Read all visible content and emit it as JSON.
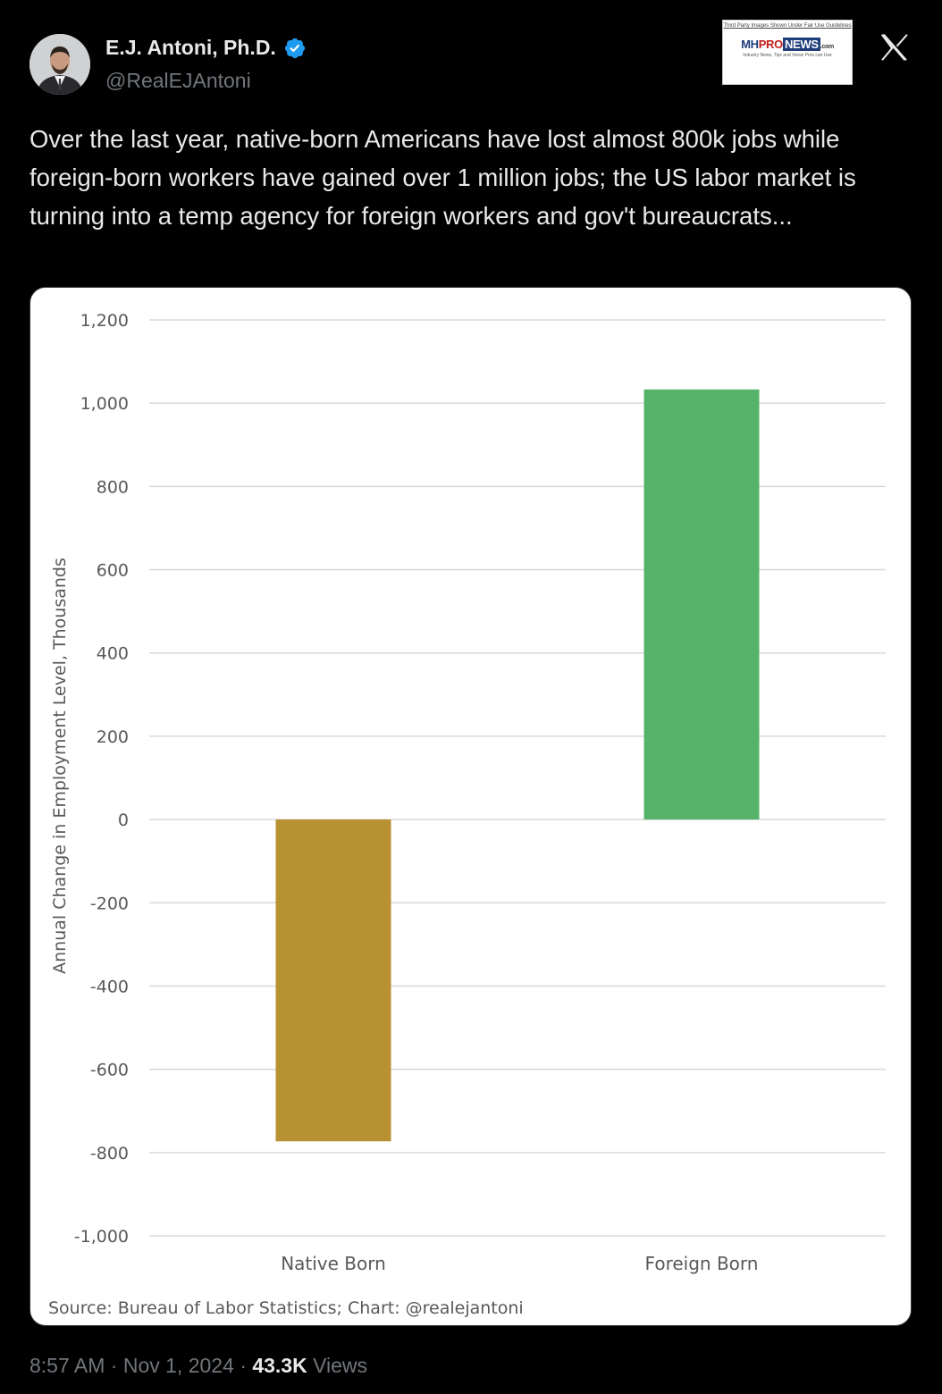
{
  "author": {
    "name": "E.J. Antoni, Ph.D.",
    "handle": "@RealEJAntoni",
    "verified": true
  },
  "logo": {
    "fine_print": "Third Party Images Shown Under Fair Use Guidelines",
    "mh": "MH",
    "pro": "PRO",
    "news": "NEWS",
    "com": ".com",
    "tagline": "Industry News, Tips and Views Pros can Use"
  },
  "platform_icon": "x-logo-icon",
  "tweet": {
    "text": "Over the last year, native-born Americans have lost almost 800k jobs while foreign-born workers have gained over 1 million jobs; the US labor market is turning into a temp agency for foreign workers and gov't bureaucrats..."
  },
  "chart_data": {
    "type": "bar",
    "categories": [
      "Native Born",
      "Foreign Born"
    ],
    "values": [
      -773,
      1033
    ],
    "colors": [
      "#b89232",
      "#55b36a"
    ],
    "ylabel": "Annual Change in Employment Level, Thousands",
    "ylim": [
      -1000,
      1200
    ],
    "yticks": [
      1200,
      1000,
      800,
      600,
      400,
      200,
      0,
      -200,
      -400,
      -600,
      -800,
      -1000
    ],
    "ytick_labels": [
      "1,200",
      "1,000",
      "800",
      "600",
      "400",
      "200",
      "0",
      "-200",
      "-400",
      "-600",
      "-800",
      "-1,000"
    ],
    "grid": true,
    "source": "Source: Bureau of Labor Statistics; Chart: @realejantoni"
  },
  "meta": {
    "time": "8:57 AM",
    "separator": "·",
    "date": "Nov 1, 2024",
    "views_count": "43.3K",
    "views_label": "Views"
  }
}
